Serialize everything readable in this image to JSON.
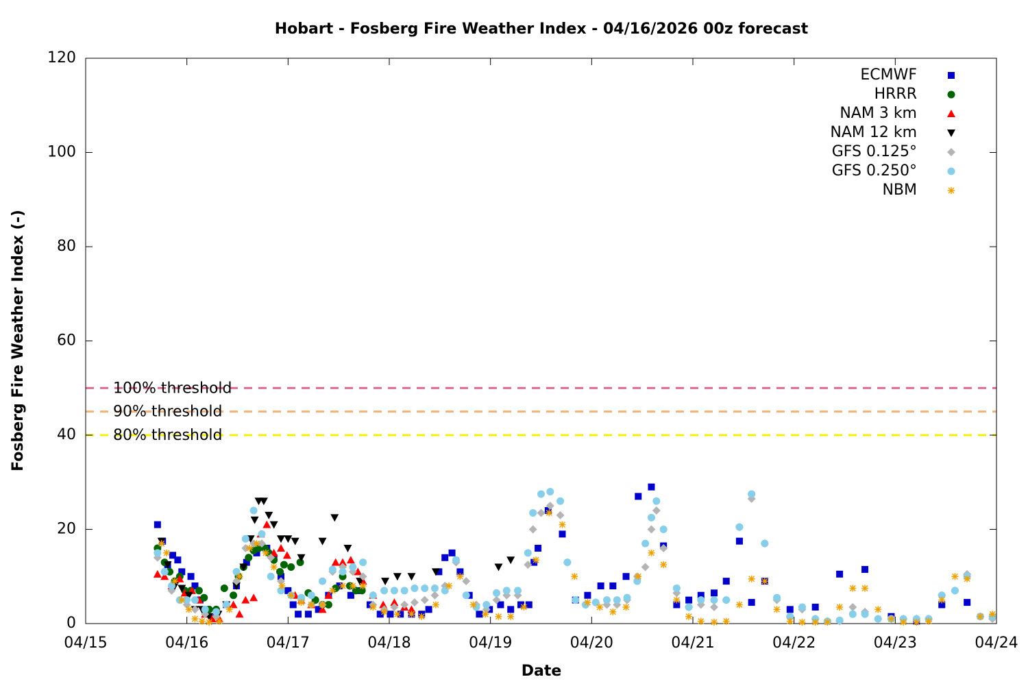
{
  "chart_data": {
    "type": "scatter",
    "title": "Hobart - Fosberg Fire Weather Index - 04/16/2026 00z forecast",
    "x_label": "Date",
    "y_label": "Fosberg Fire Weather Index (-)",
    "xlim": [
      0,
      9
    ],
    "xticks": [
      {
        "value": 0,
        "label": "04/15"
      },
      {
        "value": 1,
        "label": "04/16"
      },
      {
        "value": 2,
        "label": "04/17"
      },
      {
        "value": 3,
        "label": "04/18"
      },
      {
        "value": 4,
        "label": "04/19"
      },
      {
        "value": 5,
        "label": "04/20"
      },
      {
        "value": 6,
        "label": "04/21"
      },
      {
        "value": 7,
        "label": "04/22"
      },
      {
        "value": 8,
        "label": "04/23"
      },
      {
        "value": 9,
        "label": "04/24"
      }
    ],
    "ylim": [
      0,
      120
    ],
    "yticks": [
      0,
      20,
      40,
      60,
      80,
      100,
      120
    ],
    "legend": "top-right",
    "thresholds": [
      {
        "label": "100% threshold",
        "value": 50,
        "color": "#dc6a8a"
      },
      {
        "label": "90% threshold",
        "value": 45,
        "color": "#f2b27a"
      },
      {
        "label": "80% threshold",
        "value": 40,
        "color": "#f5f000"
      }
    ],
    "series": [
      {
        "name": "ECMWF",
        "color": "#0000cc",
        "marker": "square",
        "x": [
          0.71,
          0.76,
          0.81,
          0.86,
          0.91,
          0.95,
          1.04,
          1.08,
          1.13,
          1.18,
          1.29,
          1.39,
          1.49,
          1.59,
          1.69,
          1.79,
          1.86,
          1.93,
          2.0,
          2.05,
          2.1,
          2.2,
          2.3,
          2.4,
          2.51,
          2.62,
          2.71,
          2.81,
          2.91,
          3.01,
          3.11,
          3.22,
          3.32,
          3.39,
          3.49,
          3.55,
          3.62,
          3.7,
          3.79,
          3.89,
          3.99,
          4.1,
          4.2,
          4.3,
          4.38,
          4.43,
          4.47,
          4.57,
          4.71,
          4.84,
          4.96,
          5.09,
          5.21,
          5.34,
          5.46,
          5.59,
          5.71,
          5.84,
          5.96,
          6.08,
          6.21,
          6.33,
          6.46,
          6.58,
          6.71,
          6.96,
          7.21,
          7.45,
          7.7,
          7.96,
          8.21,
          8.46,
          8.71
        ],
        "values": [
          21,
          17.5,
          12.5,
          14.5,
          13.5,
          11,
          10,
          8,
          5,
          3,
          2,
          4,
          8,
          13,
          15,
          16,
          14,
          10,
          7,
          4,
          2,
          2,
          3,
          6,
          8,
          6,
          7,
          4,
          2,
          2,
          2,
          2,
          2,
          3,
          11,
          14,
          15,
          11,
          6,
          2,
          3,
          4,
          3,
          4,
          4,
          13,
          16,
          24,
          19,
          5,
          6,
          8,
          8,
          10,
          27,
          29,
          16.5,
          4,
          5,
          6,
          6.5,
          9,
          17.5,
          4.5,
          9,
          3,
          3.5,
          10.5,
          11.5,
          1.5,
          0.5,
          4,
          4.5
        ]
      },
      {
        "name": "HRRR",
        "color": "#006400",
        "marker": "circle",
        "x": [
          0.71,
          0.78,
          0.83,
          0.88,
          0.93,
          0.98,
          1.04,
          1.12,
          1.17,
          1.22,
          1.29,
          1.37,
          1.46,
          1.51,
          1.56,
          1.61,
          1.66,
          1.71,
          1.77,
          1.81,
          1.86,
          1.92,
          1.96,
          2.03,
          2.12,
          2.2,
          2.27,
          2.34,
          2.4,
          2.47,
          2.54,
          2.61,
          2.67,
          2.73
        ],
        "values": [
          16,
          13,
          11,
          9,
          10,
          7,
          7,
          7,
          5.5,
          3,
          3,
          7.5,
          6,
          10,
          12,
          14,
          15.5,
          16,
          16,
          15,
          13.5,
          11,
          12.5,
          12,
          13,
          6.5,
          5,
          4,
          4,
          7.5,
          10,
          8,
          7,
          7
        ]
      },
      {
        "name": "NAM 3 km",
        "color": "#ff0000",
        "marker": "triangle-up",
        "x": [
          0.71,
          0.78,
          0.85,
          0.93,
          0.98,
          1.05,
          1.12,
          1.18,
          1.25,
          1.32,
          1.4,
          1.46,
          1.52,
          1.58,
          1.66,
          1.73,
          1.79,
          1.86,
          1.93,
          1.99,
          2.07,
          2.13,
          2.23,
          2.34,
          2.4,
          2.47,
          2.54,
          2.62,
          2.69,
          2.74,
          2.84,
          2.94,
          3.05,
          3.15,
          3.22
        ],
        "values": [
          10.5,
          10,
          8,
          9.5,
          6.5,
          7,
          5,
          2,
          1,
          1,
          4,
          4,
          2,
          5,
          5.5,
          19,
          21,
          15,
          16,
          14.5,
          6,
          5,
          4,
          3,
          6,
          13,
          13,
          13.5,
          11,
          9,
          6,
          4,
          4.5,
          3.5,
          3
        ]
      },
      {
        "name": "NAM 12 km",
        "color": "#000000",
        "marker": "triangle-down",
        "x": [
          0.75,
          0.81,
          0.88,
          0.95,
          1.02,
          1.08,
          1.15,
          1.22,
          1.31,
          1.39,
          1.49,
          1.56,
          1.63,
          1.67,
          1.71,
          1.76,
          1.81,
          1.86,
          1.93,
          2.0,
          2.07,
          2.13,
          2.34,
          2.46,
          2.59,
          2.71,
          2.96,
          3.08,
          3.22,
          3.46,
          4.08,
          4.2
        ],
        "values": [
          17.5,
          12.5,
          8,
          7.5,
          6,
          3,
          3,
          1.5,
          2,
          4,
          8,
          12,
          18,
          22,
          26,
          26,
          23,
          21,
          18,
          18,
          17.5,
          14,
          17.5,
          22.5,
          16,
          9,
          9,
          10,
          10,
          11,
          12,
          13.5
        ]
      },
      {
        "name": "GFS 0.125°",
        "color": "#b4b4b4",
        "marker": "diamond",
        "x": [
          0.71,
          0.78,
          0.85,
          0.93,
          1.0,
          1.08,
          1.18,
          1.29,
          1.39,
          1.49,
          1.58,
          1.66,
          1.74,
          1.83,
          1.93,
          2.03,
          2.13,
          2.23,
          2.34,
          2.44,
          2.54,
          2.64,
          2.74,
          2.84,
          2.95,
          3.05,
          3.15,
          3.25,
          3.35,
          3.45,
          3.55,
          3.66,
          3.76,
          3.86,
          3.96,
          4.06,
          4.16,
          4.27,
          4.37,
          4.42,
          4.5,
          4.59,
          4.69,
          4.76,
          4.84,
          4.94,
          5.04,
          5.15,
          5.25,
          5.35,
          5.45,
          5.53,
          5.59,
          5.64,
          5.71,
          5.84,
          5.96,
          6.08,
          6.21,
          6.33,
          6.46,
          6.58,
          6.71,
          6.83,
          6.96,
          7.08,
          7.21,
          7.33,
          7.45,
          7.58,
          7.7,
          7.83,
          7.96,
          8.08,
          8.21,
          8.33,
          8.46,
          8.59,
          8.71,
          8.84,
          8.96
        ],
        "values": [
          14,
          11,
          7,
          5,
          4,
          3,
          2,
          1.5,
          4,
          9,
          16,
          17,
          17,
          14,
          9,
          6,
          5,
          4,
          4,
          11,
          12,
          11,
          10,
          4,
          3,
          3.5,
          4,
          4.5,
          5,
          6,
          8,
          13,
          9,
          4,
          3,
          5,
          6,
          6,
          12.5,
          20,
          23.5,
          25,
          23,
          13,
          5,
          4,
          4.5,
          4,
          4,
          5,
          10,
          12,
          20,
          24,
          16,
          6.5,
          3.5,
          4,
          3.5,
          5,
          20.5,
          26.5,
          17,
          5,
          1.5,
          3,
          1,
          0.5,
          0.5,
          3.5,
          2.5,
          1,
          1,
          1,
          1,
          1,
          6,
          7,
          10.5,
          1.5,
          1
        ]
      },
      {
        "name": "GFS 0.250°",
        "color": "#87ceeb",
        "marker": "circle",
        "x": [
          0.71,
          0.78,
          0.85,
          0.93,
          1.0,
          1.08,
          1.18,
          1.29,
          1.39,
          1.49,
          1.58,
          1.66,
          1.74,
          1.83,
          1.93,
          2.03,
          2.13,
          2.23,
          2.34,
          2.44,
          2.54,
          2.64,
          2.74,
          2.84,
          2.95,
          3.05,
          3.15,
          3.25,
          3.35,
          3.45,
          3.55,
          3.66,
          3.76,
          3.86,
          3.96,
          4.06,
          4.16,
          4.27,
          4.37,
          4.42,
          4.5,
          4.59,
          4.69,
          4.76,
          4.84,
          4.94,
          5.04,
          5.15,
          5.25,
          5.35,
          5.45,
          5.53,
          5.59,
          5.64,
          5.71,
          5.84,
          5.96,
          6.08,
          6.21,
          6.33,
          6.46,
          6.58,
          6.71,
          6.83,
          6.96,
          7.08,
          7.21,
          7.33,
          7.45,
          7.58,
          7.7,
          7.83,
          7.96,
          8.08,
          8.21,
          8.33,
          8.46,
          8.59,
          8.71,
          8.84,
          8.96
        ],
        "values": [
          15,
          11,
          8,
          5,
          5,
          5,
          3,
          2.5,
          4,
          11,
          18,
          24,
          19,
          10,
          7,
          6,
          5.5,
          6,
          9,
          11.5,
          11,
          12,
          13,
          6,
          7,
          7,
          7,
          7.5,
          7.5,
          7.5,
          7,
          13.5,
          6,
          3.5,
          4,
          6.5,
          7,
          7,
          15,
          23.5,
          27.5,
          28,
          26,
          13,
          5,
          4,
          4.5,
          5,
          5,
          5.5,
          9,
          17,
          22.5,
          26,
          20,
          7.5,
          3.5,
          5,
          5,
          5,
          20.5,
          27.5,
          17,
          5.5,
          1.5,
          3.5,
          1,
          0.5,
          0.7,
          2,
          2,
          1,
          1,
          1,
          1,
          1,
          6,
          7,
          10,
          1.5,
          1.5
        ]
      },
      {
        "name": "NBM",
        "color": "#f0a000",
        "marker": "asterisk",
        "x": [
          0.75,
          0.8,
          0.88,
          0.95,
          1.02,
          1.08,
          1.15,
          1.22,
          1.32,
          1.42,
          1.52,
          1.62,
          1.69,
          1.78,
          1.86,
          1.94,
          2.03,
          2.13,
          2.23,
          2.34,
          2.44,
          2.54,
          2.64,
          2.74,
          2.84,
          2.95,
          3.08,
          3.22,
          3.32,
          3.46,
          3.59,
          3.7,
          3.83,
          3.95,
          4.08,
          4.2,
          4.33,
          4.45,
          4.58,
          4.71,
          4.83,
          4.96,
          5.08,
          5.21,
          5.34,
          5.46,
          5.59,
          5.71,
          5.84,
          5.96,
          6.08,
          6.21,
          6.33,
          6.46,
          6.58,
          6.71,
          6.83,
          6.96,
          7.08,
          7.21,
          7.33,
          7.45,
          7.58,
          7.7,
          7.83,
          7.96,
          8.08,
          8.21,
          8.33,
          8.46,
          8.59,
          8.71,
          8.84,
          8.96
        ],
        "values": [
          17,
          15,
          9,
          5,
          3,
          1,
          0.5,
          0.3,
          0.5,
          3,
          10,
          16,
          17,
          15,
          12,
          8,
          6,
          4.5,
          4,
          4,
          7,
          8,
          8,
          8,
          3.5,
          2.5,
          2,
          2,
          1.5,
          4,
          8,
          10,
          4,
          2,
          1.5,
          1.5,
          3.5,
          13.5,
          23.5,
          21,
          10,
          4.5,
          3.5,
          2.5,
          3.5,
          10,
          15,
          12.5,
          5,
          1.5,
          0.5,
          0.3,
          0.5,
          4,
          9.5,
          9,
          3,
          0.5,
          0.3,
          0.3,
          0.3,
          3.5,
          7.5,
          7.5,
          3,
          1,
          0.3,
          0.3,
          0.5,
          5,
          10,
          9.5,
          1.5,
          2
        ]
      }
    ]
  }
}
